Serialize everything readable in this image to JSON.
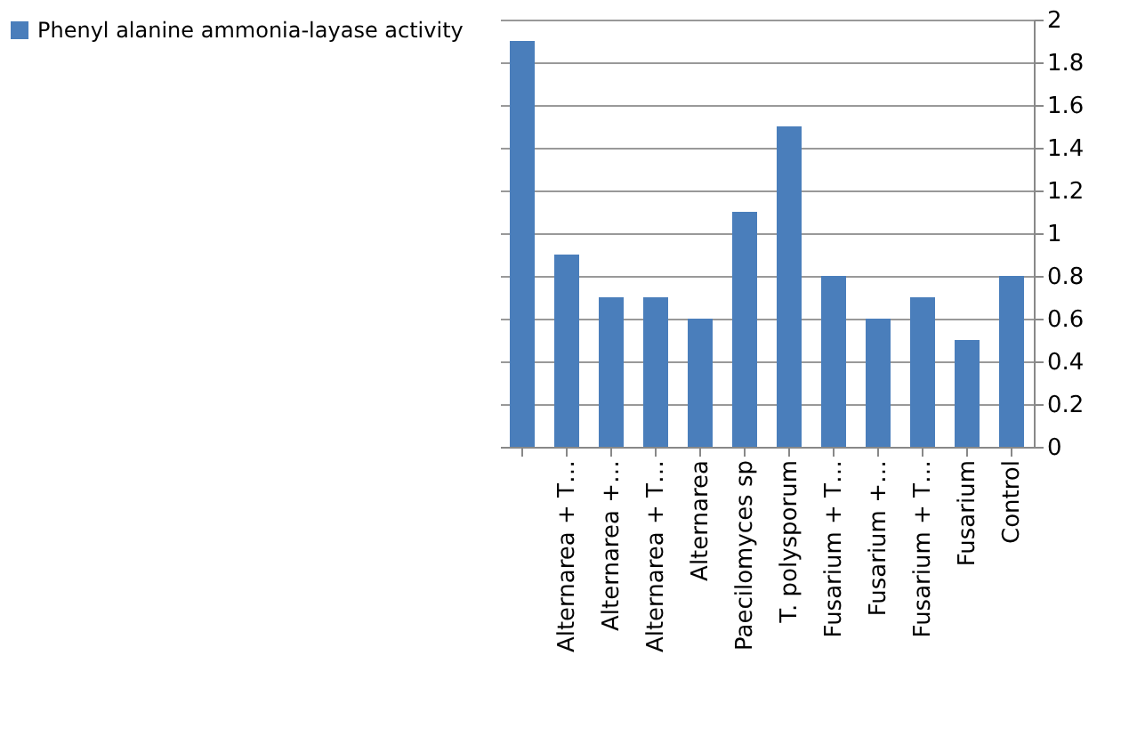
{
  "chart_data": {
    "type": "bar",
    "categories": [
      null,
      "Alternarea + T…",
      "Alternarea +…",
      "Alternarea + T…",
      "Alternarea",
      "Paecilomyces sp",
      "T. polysporum",
      "Fusarium + T…",
      "Fusarium +…",
      "Fusarium + T…",
      "Fusarium",
      "Control"
    ],
    "series": [
      {
        "name": "Phenyl alanine ammonia-layase activity",
        "color": "#4a7ebb",
        "values": [
          1.9,
          0.9,
          0.7,
          0.7,
          0.6,
          1.1,
          1.5,
          0.8,
          0.6,
          0.7,
          0.5,
          0.8
        ]
      }
    ],
    "ylim": [
      0,
      2
    ],
    "yticks": [
      0,
      0.2,
      0.4,
      0.6,
      0.8,
      1,
      1.2,
      1.4,
      1.6,
      1.8,
      2
    ],
    "grid": "y",
    "legend": "left"
  }
}
